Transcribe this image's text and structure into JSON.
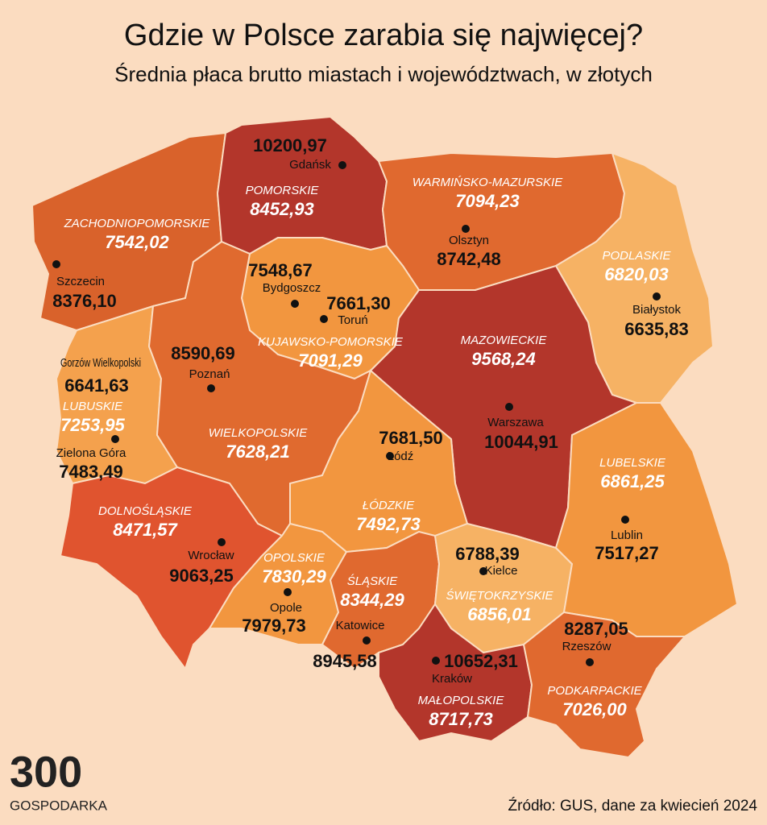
{
  "header": {
    "title": "Gdzie w Polsce zarabia się najwięcej?",
    "subtitle": "Średnia płaca brutto miastach i województwach, w złotych"
  },
  "regions": [
    {
      "name": "ZACHODNIOPOMORSKIE",
      "value": "7542,02",
      "color": "#d9622b"
    },
    {
      "name": "POMORSKIE",
      "value": "8452,93",
      "color": "#b3362b"
    },
    {
      "name": "WARMIŃSKO-MAZURSKIE",
      "value": "7094,23",
      "color": "#e0692f"
    },
    {
      "name": "PODLASKIE",
      "value": "6820,03",
      "color": "#f6b264"
    },
    {
      "name": "KUJAWSKO-POMORSKIE",
      "value": "7091,29",
      "color": "#f2963f"
    },
    {
      "name": "MAZOWIECKIE",
      "value": "9568,24",
      "color": "#b3362b"
    },
    {
      "name": "LUBUSKIE",
      "value": "7253,95",
      "color": "#f4a14d"
    },
    {
      "name": "WIELKOPOLSKIE",
      "value": "7628,21",
      "color": "#e06a2f"
    },
    {
      "name": "DOLNOŚLĄSKIE",
      "value": "8471,57",
      "color": "#e0542f"
    },
    {
      "name": "ŁÓDZKIE",
      "value": "7492,73",
      "color": "#f2963f"
    },
    {
      "name": "OPOLSKIE",
      "value": "7830,29",
      "color": "#f2963f"
    },
    {
      "name": "ŚLĄSKIE",
      "value": "8344,29",
      "color": "#e0692f"
    },
    {
      "name": "ŚWIĘTOKRZYSKIE",
      "value": "6856,01",
      "color": "#f6b264"
    },
    {
      "name": "LUBELSKIE",
      "value": "6861,25",
      "color": "#f2963f"
    },
    {
      "name": "MAŁOPOLSKIE",
      "value": "8717,73",
      "color": "#b3362b"
    },
    {
      "name": "PODKARPACKIE",
      "value": "7026,00",
      "color": "#e0692f"
    }
  ],
  "cities": [
    {
      "name": "Gdańsk",
      "value": "10200,97"
    },
    {
      "name": "Szczecin",
      "value": "8376,10"
    },
    {
      "name": "Olsztyn",
      "value": "8742,48"
    },
    {
      "name": "Białystok",
      "value": "6635,83"
    },
    {
      "name": "Bydgoszcz",
      "value": "7548,67"
    },
    {
      "name": "Toruń",
      "value": "7661,30"
    },
    {
      "name": "Gorzów Wielkopolski",
      "value": "6641,63"
    },
    {
      "name": "Poznań",
      "value": "8590,69"
    },
    {
      "name": "Zielona Góra",
      "value": "7483,49"
    },
    {
      "name": "Łódź",
      "value": "7681,50"
    },
    {
      "name": "Warszawa",
      "value": "10044,91"
    },
    {
      "name": "Lublin",
      "value": "7517,27"
    },
    {
      "name": "Wrocław",
      "value": "9063,25"
    },
    {
      "name": "Opole",
      "value": "7979,73"
    },
    {
      "name": "Kielce",
      "value": "6788,39"
    },
    {
      "name": "Katowice",
      "value": "8945,58"
    },
    {
      "name": "Rzeszów",
      "value": "8287,05"
    },
    {
      "name": "Kraków",
      "value": "10652,31"
    }
  ],
  "logo": {
    "number": "300",
    "text": "GOSPODARKA"
  },
  "source": "Źródło: GUS, dane za kwiecień 2024"
}
